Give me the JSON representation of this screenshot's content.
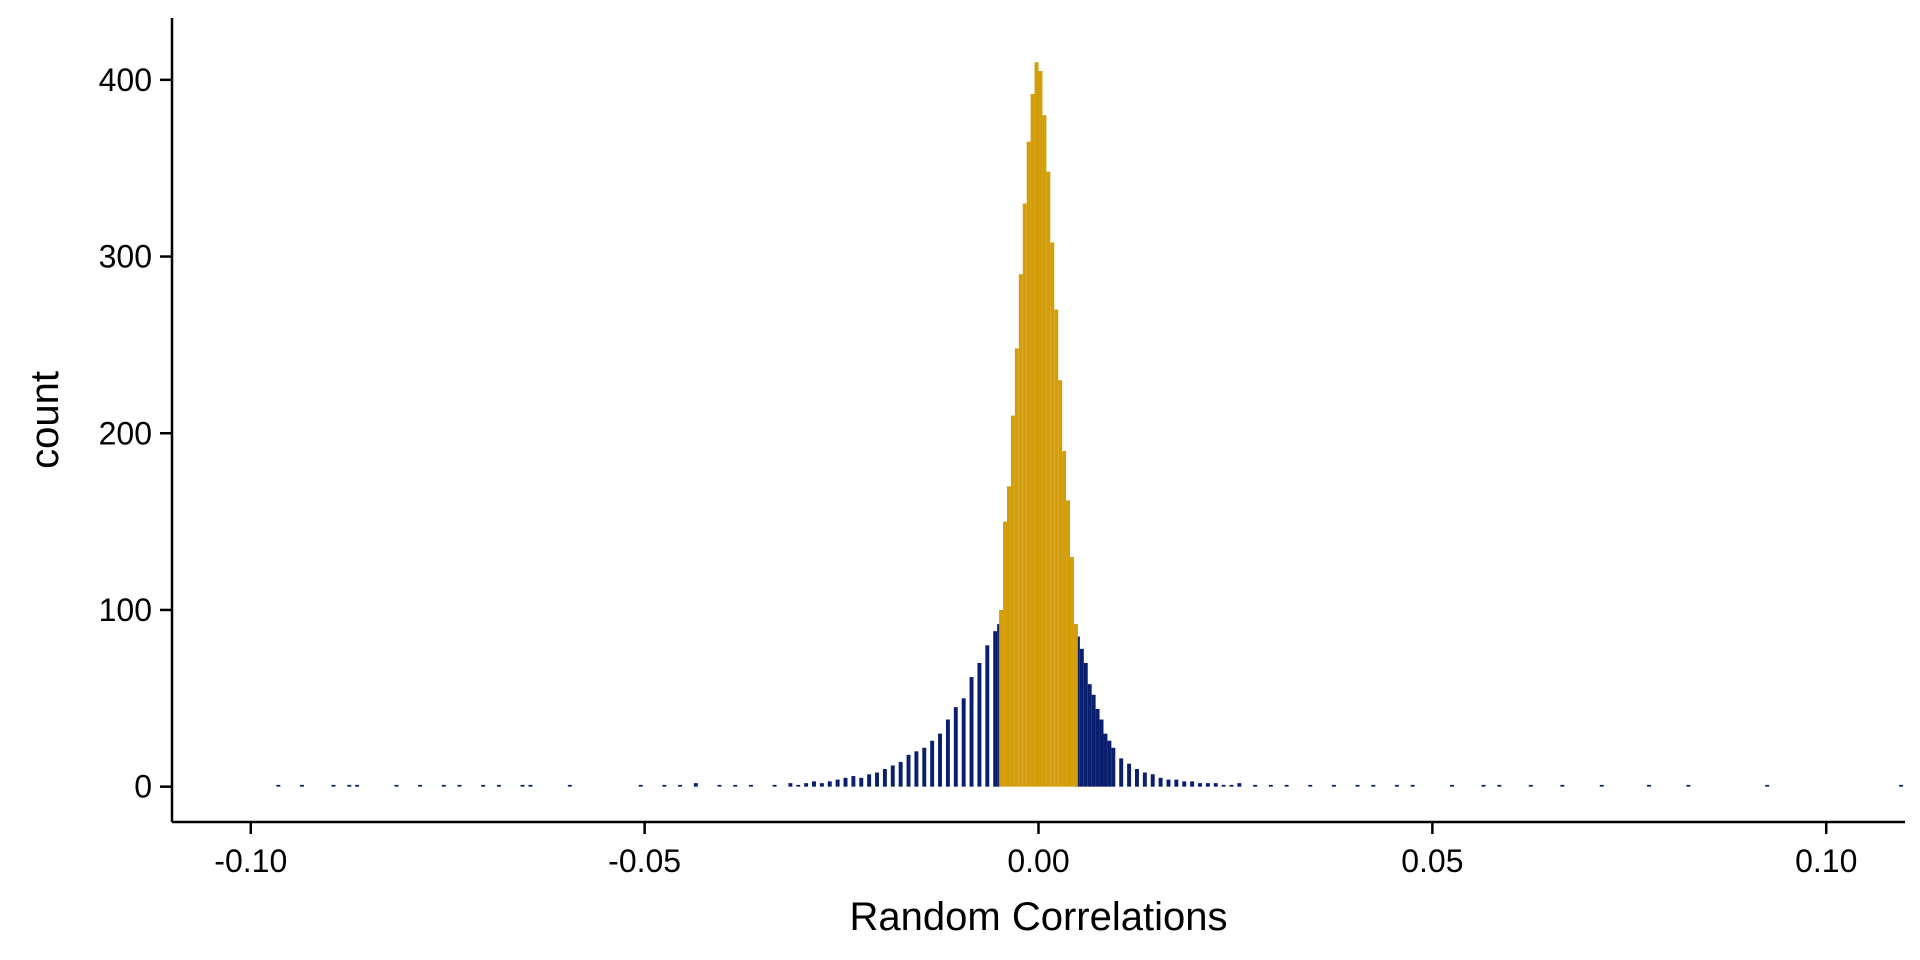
{
  "chart_data": {
    "type": "bar",
    "title": "",
    "xlabel": "Random Correlations",
    "ylabel": "count",
    "xlim": [
      -0.11,
      0.11
    ],
    "ylim": [
      -20,
      435
    ],
    "xticks": [
      -0.1,
      -0.05,
      0.0,
      0.05,
      0.1
    ],
    "xtick_labels": [
      "-0.10",
      "-0.05",
      "0.00",
      "0.05",
      "0.10"
    ],
    "yticks": [
      0,
      100,
      200,
      300,
      400
    ],
    "ytick_labels": [
      "0",
      "100",
      "200",
      "300",
      "400"
    ],
    "grid": false,
    "legend": "none",
    "bin_width": 0.0005,
    "colors": {
      "central": "#D49E0A",
      "tails": "#0A1F6E"
    },
    "series": [
      {
        "color_key": "tails",
        "x": [
          -0.0965,
          -0.0935,
          -0.0895,
          -0.0875,
          -0.0865,
          -0.0815,
          -0.0785,
          -0.0755,
          -0.0735,
          -0.0705,
          -0.0685,
          -0.0655,
          -0.0645,
          -0.0595,
          -0.0505,
          -0.0475,
          -0.0455,
          -0.0435,
          -0.0405,
          -0.0385,
          -0.0365,
          -0.0335,
          -0.0315,
          -0.0305,
          -0.0295,
          -0.0285,
          -0.0275,
          -0.0265,
          -0.0255,
          -0.0245,
          -0.0235,
          -0.0225,
          -0.0215,
          -0.0205,
          -0.0195,
          -0.0185,
          -0.0175,
          -0.0165,
          -0.0155,
          -0.0145,
          -0.0135,
          -0.0125,
          -0.0115,
          -0.0105,
          -0.0095,
          -0.0085,
          -0.0075,
          -0.0065,
          -0.0055,
          -0.005,
          0.005,
          0.0055,
          0.006,
          0.0065,
          0.007,
          0.0075,
          0.008,
          0.0085,
          0.009,
          0.0095,
          0.0105,
          0.0115,
          0.0125,
          0.0135,
          0.0145,
          0.0155,
          0.0165,
          0.0175,
          0.0185,
          0.0195,
          0.0205,
          0.0215,
          0.0225,
          0.0235,
          0.0245,
          0.0255,
          0.0275,
          0.0295,
          0.0315,
          0.0345,
          0.0375,
          0.0405,
          0.0425,
          0.0455,
          0.0475,
          0.0525,
          0.0565,
          0.0585,
          0.0625,
          0.0665,
          0.0715,
          0.0775,
          0.0825,
          0.0925,
          0.1095
        ],
        "values": [
          1,
          1,
          1,
          1,
          1,
          1,
          1,
          1,
          1,
          1,
          1,
          1,
          1,
          1,
          1,
          1,
          1,
          2,
          1,
          1,
          1,
          1,
          2,
          1,
          2,
          3,
          2,
          3,
          4,
          5,
          6,
          5,
          7,
          8,
          10,
          12,
          14,
          18,
          20,
          22,
          26,
          30,
          38,
          45,
          50,
          62,
          70,
          80,
          88,
          92,
          85,
          78,
          70,
          58,
          52,
          44,
          38,
          30,
          26,
          22,
          16,
          13,
          10,
          8,
          7,
          5,
          4,
          4,
          3,
          3,
          2,
          2,
          2,
          1,
          1,
          2,
          1,
          1,
          1,
          1,
          1,
          1,
          1,
          1,
          1,
          1,
          1,
          1,
          1,
          1,
          1,
          1,
          1,
          1,
          1
        ]
      },
      {
        "color_key": "central",
        "x": [
          -0.00475,
          -0.00425,
          -0.00375,
          -0.00325,
          -0.00275,
          -0.00225,
          -0.00175,
          -0.00125,
          -0.00075,
          -0.00025,
          0.00025,
          0.00075,
          0.00125,
          0.00175,
          0.00225,
          0.00275,
          0.00325,
          0.00375,
          0.00425,
          0.00475
        ],
        "values": [
          100,
          150,
          170,
          210,
          248,
          290,
          330,
          365,
          392,
          410,
          405,
          380,
          348,
          308,
          270,
          230,
          190,
          162,
          130,
          92
        ]
      }
    ]
  }
}
